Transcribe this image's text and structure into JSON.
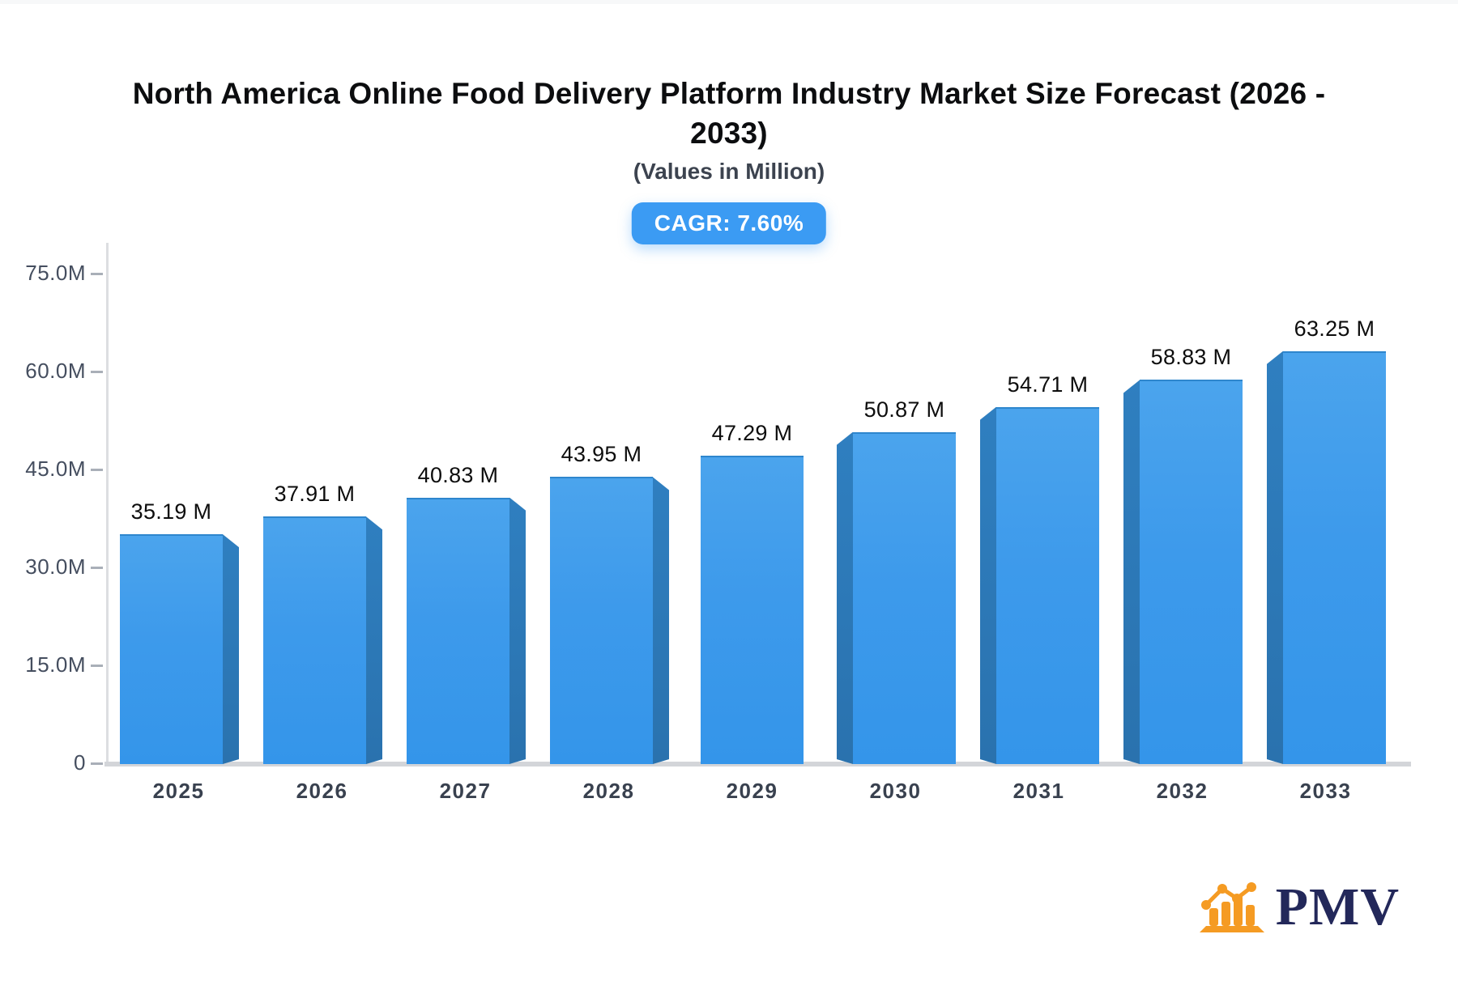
{
  "header": {
    "title_line1": "North America Online Food Delivery Platform Industry Market Size Forecast (2026 -",
    "title_line2": "2033)",
    "subtitle": "(Values in Million)",
    "cagr_label": "CAGR: 7.60%",
    "badge_color": "#3b9bf3"
  },
  "logo": {
    "text": "PMV",
    "icon": "bar-chart-logo-icon",
    "icon_color": "#f59b23",
    "text_color": "#23285a"
  },
  "chart_data": {
    "type": "bar",
    "title": "North America Online Food Delivery Platform Industry Market Size Forecast (2026 - 2033)",
    "subtitle": "(Values in Million)",
    "annotation": "CAGR: 7.60%",
    "unit": "Million",
    "categories": [
      "2025",
      "2026",
      "2027",
      "2028",
      "2029",
      "2030",
      "2031",
      "2032",
      "2033"
    ],
    "values": [
      35.19,
      37.91,
      40.83,
      43.95,
      47.29,
      50.87,
      54.71,
      58.83,
      63.25
    ],
    "labels": [
      "35.19 M",
      "37.91 M",
      "40.83 M",
      "43.95 M",
      "47.29 M",
      "50.87 M",
      "54.71 M",
      "58.83 M",
      "63.25 M"
    ],
    "ylim": [
      0,
      75
    ],
    "ytick_values": [
      75,
      60,
      45,
      30,
      15,
      0
    ],
    "ytick_labels": [
      "75.0M",
      "60.0M",
      "45.0M",
      "30.0M",
      "15.0M",
      "0"
    ],
    "xlabel": "",
    "ylabel": "",
    "grid": false,
    "legend_position": "none",
    "bar_face_color_top": "#4ba4ed",
    "bar_face_color_bottom": "#3495ea",
    "bar_side_color": "#2b77b6",
    "axis_color": "#d3d5d9"
  }
}
